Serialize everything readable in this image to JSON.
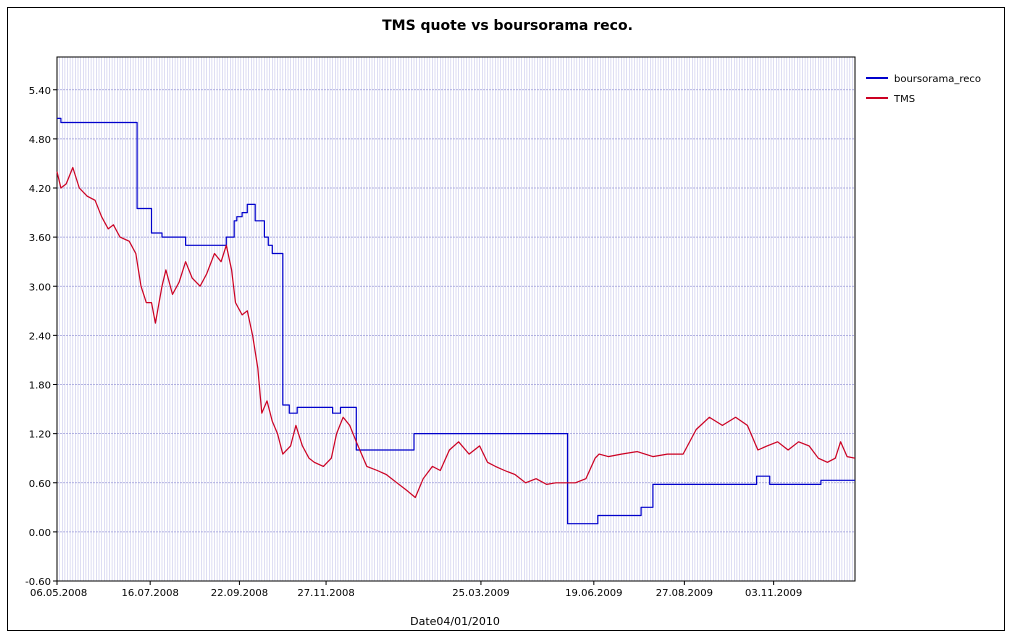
{
  "chart_data": {
    "type": "line",
    "title": "TMS quote vs boursorama reco.",
    "xlabel": "Date04/01/2010",
    "ylabel": "",
    "ylim": [
      -0.6,
      5.8
    ],
    "y_ticks": [
      "-0.60",
      "0.00",
      "0.60",
      "1.20",
      "1.80",
      "2.40",
      "3.00",
      "3.60",
      "4.20",
      "4.80",
      "5.40"
    ],
    "x_range": [
      "2008-05-06",
      "2010-01-04"
    ],
    "x_tick_labels": [
      "06.05.2008",
      "16.07.2008",
      "22.09.2008",
      "27.11.2008",
      "25.03.2009",
      "19.06.2009",
      "27.08.2009",
      "03.11.2009"
    ],
    "x_tick_dates": [
      "2008-05-06",
      "2008-07-16",
      "2008-09-22",
      "2008-11-27",
      "2009-03-25",
      "2009-06-19",
      "2009-08-27",
      "2009-11-03"
    ],
    "grid": true,
    "legend": "top-right",
    "series": [
      {
        "name": "boursorama_reco",
        "color": "#0000cc",
        "style": "step",
        "points": [
          [
            "2008-05-06",
            5.05
          ],
          [
            "2008-05-09",
            5.0
          ],
          [
            "2008-07-04",
            5.0
          ],
          [
            "2008-07-06",
            3.95
          ],
          [
            "2008-07-14",
            3.95
          ],
          [
            "2008-07-17",
            3.65
          ],
          [
            "2008-07-25",
            3.6
          ],
          [
            "2008-08-12",
            3.5
          ],
          [
            "2008-09-09",
            3.5
          ],
          [
            "2008-09-12",
            3.6
          ],
          [
            "2008-09-18",
            3.8
          ],
          [
            "2008-09-20",
            3.85
          ],
          [
            "2008-09-24",
            3.9
          ],
          [
            "2008-09-28",
            4.0
          ],
          [
            "2008-10-04",
            3.8
          ],
          [
            "2008-10-11",
            3.6
          ],
          [
            "2008-10-14",
            3.5
          ],
          [
            "2008-10-17",
            3.4
          ],
          [
            "2008-10-25",
            1.55
          ],
          [
            "2008-10-30",
            1.45
          ],
          [
            "2008-11-05",
            1.52
          ],
          [
            "2008-11-28",
            1.52
          ],
          [
            "2008-12-02",
            1.45
          ],
          [
            "2008-12-08",
            1.52
          ],
          [
            "2008-12-20",
            1.0
          ],
          [
            "2009-02-02",
            1.2
          ],
          [
            "2009-05-28",
            1.2
          ],
          [
            "2009-05-30",
            0.1
          ],
          [
            "2009-06-10",
            0.1
          ],
          [
            "2009-06-20",
            0.1
          ],
          [
            "2009-06-22",
            0.2
          ],
          [
            "2009-07-01",
            0.2
          ],
          [
            "2009-07-25",
            0.3
          ],
          [
            "2009-08-03",
            0.58
          ],
          [
            "2009-10-20",
            0.58
          ],
          [
            "2009-10-21",
            0.68
          ],
          [
            "2009-10-31",
            0.58
          ],
          [
            "2009-12-09",
            0.63
          ],
          [
            "2010-01-04",
            0.63
          ]
        ]
      },
      {
        "name": "TMS",
        "color": "#cc0022",
        "style": "line",
        "points": [
          [
            "2008-05-06",
            4.4
          ],
          [
            "2008-05-09",
            4.2
          ],
          [
            "2008-05-13",
            4.25
          ],
          [
            "2008-05-18",
            4.45
          ],
          [
            "2008-05-23",
            4.2
          ],
          [
            "2008-05-29",
            4.1
          ],
          [
            "2008-06-04",
            4.05
          ],
          [
            "2008-06-09",
            3.85
          ],
          [
            "2008-06-14",
            3.7
          ],
          [
            "2008-06-18",
            3.75
          ],
          [
            "2008-06-23",
            3.6
          ],
          [
            "2008-06-30",
            3.55
          ],
          [
            "2008-07-05",
            3.4
          ],
          [
            "2008-07-09",
            3.0
          ],
          [
            "2008-07-13",
            2.8
          ],
          [
            "2008-07-17",
            2.8
          ],
          [
            "2008-07-20",
            2.55
          ],
          [
            "2008-07-25",
            3.0
          ],
          [
            "2008-07-28",
            3.2
          ],
          [
            "2008-08-02",
            2.9
          ],
          [
            "2008-08-07",
            3.05
          ],
          [
            "2008-08-12",
            3.3
          ],
          [
            "2008-08-17",
            3.1
          ],
          [
            "2008-08-23",
            3.0
          ],
          [
            "2008-08-28",
            3.15
          ],
          [
            "2008-09-03",
            3.4
          ],
          [
            "2008-09-08",
            3.3
          ],
          [
            "2008-09-12",
            3.5
          ],
          [
            "2008-09-16",
            3.2
          ],
          [
            "2008-09-19",
            2.8
          ],
          [
            "2008-09-24",
            2.65
          ],
          [
            "2008-09-28",
            2.7
          ],
          [
            "2008-10-02",
            2.4
          ],
          [
            "2008-10-06",
            2.0
          ],
          [
            "2008-10-09",
            1.45
          ],
          [
            "2008-10-13",
            1.6
          ],
          [
            "2008-10-17",
            1.35
          ],
          [
            "2008-10-21",
            1.2
          ],
          [
            "2008-10-25",
            0.95
          ],
          [
            "2008-10-31",
            1.05
          ],
          [
            "2008-11-04",
            1.3
          ],
          [
            "2008-11-09",
            1.05
          ],
          [
            "2008-11-14",
            0.9
          ],
          [
            "2008-11-18",
            0.85
          ],
          [
            "2008-11-25",
            0.8
          ],
          [
            "2008-12-01",
            0.9
          ],
          [
            "2008-12-05",
            1.2
          ],
          [
            "2008-12-10",
            1.4
          ],
          [
            "2008-12-15",
            1.3
          ],
          [
            "2008-12-20",
            1.1
          ],
          [
            "2008-12-28",
            0.8
          ],
          [
            "2009-01-05",
            0.75
          ],
          [
            "2009-01-12",
            0.7
          ],
          [
            "2009-01-20",
            0.6
          ],
          [
            "2009-01-28",
            0.5
          ],
          [
            "2009-02-03",
            0.42
          ],
          [
            "2009-02-09",
            0.65
          ],
          [
            "2009-02-16",
            0.8
          ],
          [
            "2009-02-22",
            0.75
          ],
          [
            "2009-03-01",
            1.0
          ],
          [
            "2009-03-08",
            1.1
          ],
          [
            "2009-03-16",
            0.95
          ],
          [
            "2009-03-24",
            1.05
          ],
          [
            "2009-03-30",
            0.85
          ],
          [
            "2009-04-05",
            0.8
          ],
          [
            "2009-04-12",
            0.75
          ],
          [
            "2009-04-20",
            0.7
          ],
          [
            "2009-04-28",
            0.6
          ],
          [
            "2009-05-06",
            0.65
          ],
          [
            "2009-05-14",
            0.58
          ],
          [
            "2009-05-21",
            0.6
          ],
          [
            "2009-05-28",
            0.6
          ],
          [
            "2009-06-05",
            0.6
          ],
          [
            "2009-06-13",
            0.65
          ],
          [
            "2009-06-20",
            0.9
          ],
          [
            "2009-06-23",
            0.95
          ],
          [
            "2009-06-30",
            0.92
          ],
          [
            "2009-07-10",
            0.95
          ],
          [
            "2009-07-22",
            0.98
          ],
          [
            "2009-08-03",
            0.92
          ],
          [
            "2009-08-14",
            0.95
          ],
          [
            "2009-08-26",
            0.95
          ],
          [
            "2009-09-05",
            1.25
          ],
          [
            "2009-09-15",
            1.4
          ],
          [
            "2009-09-25",
            1.3
          ],
          [
            "2009-10-05",
            1.4
          ],
          [
            "2009-10-14",
            1.3
          ],
          [
            "2009-10-22",
            1.0
          ],
          [
            "2009-10-29",
            1.05
          ],
          [
            "2009-11-06",
            1.1
          ],
          [
            "2009-11-14",
            1.0
          ],
          [
            "2009-11-22",
            1.1
          ],
          [
            "2009-11-30",
            1.05
          ],
          [
            "2009-12-07",
            0.9
          ],
          [
            "2009-12-14",
            0.85
          ],
          [
            "2009-12-20",
            0.9
          ],
          [
            "2009-12-24",
            1.1
          ],
          [
            "2009-12-29",
            0.92
          ],
          [
            "2010-01-04",
            0.9
          ]
        ]
      }
    ]
  }
}
